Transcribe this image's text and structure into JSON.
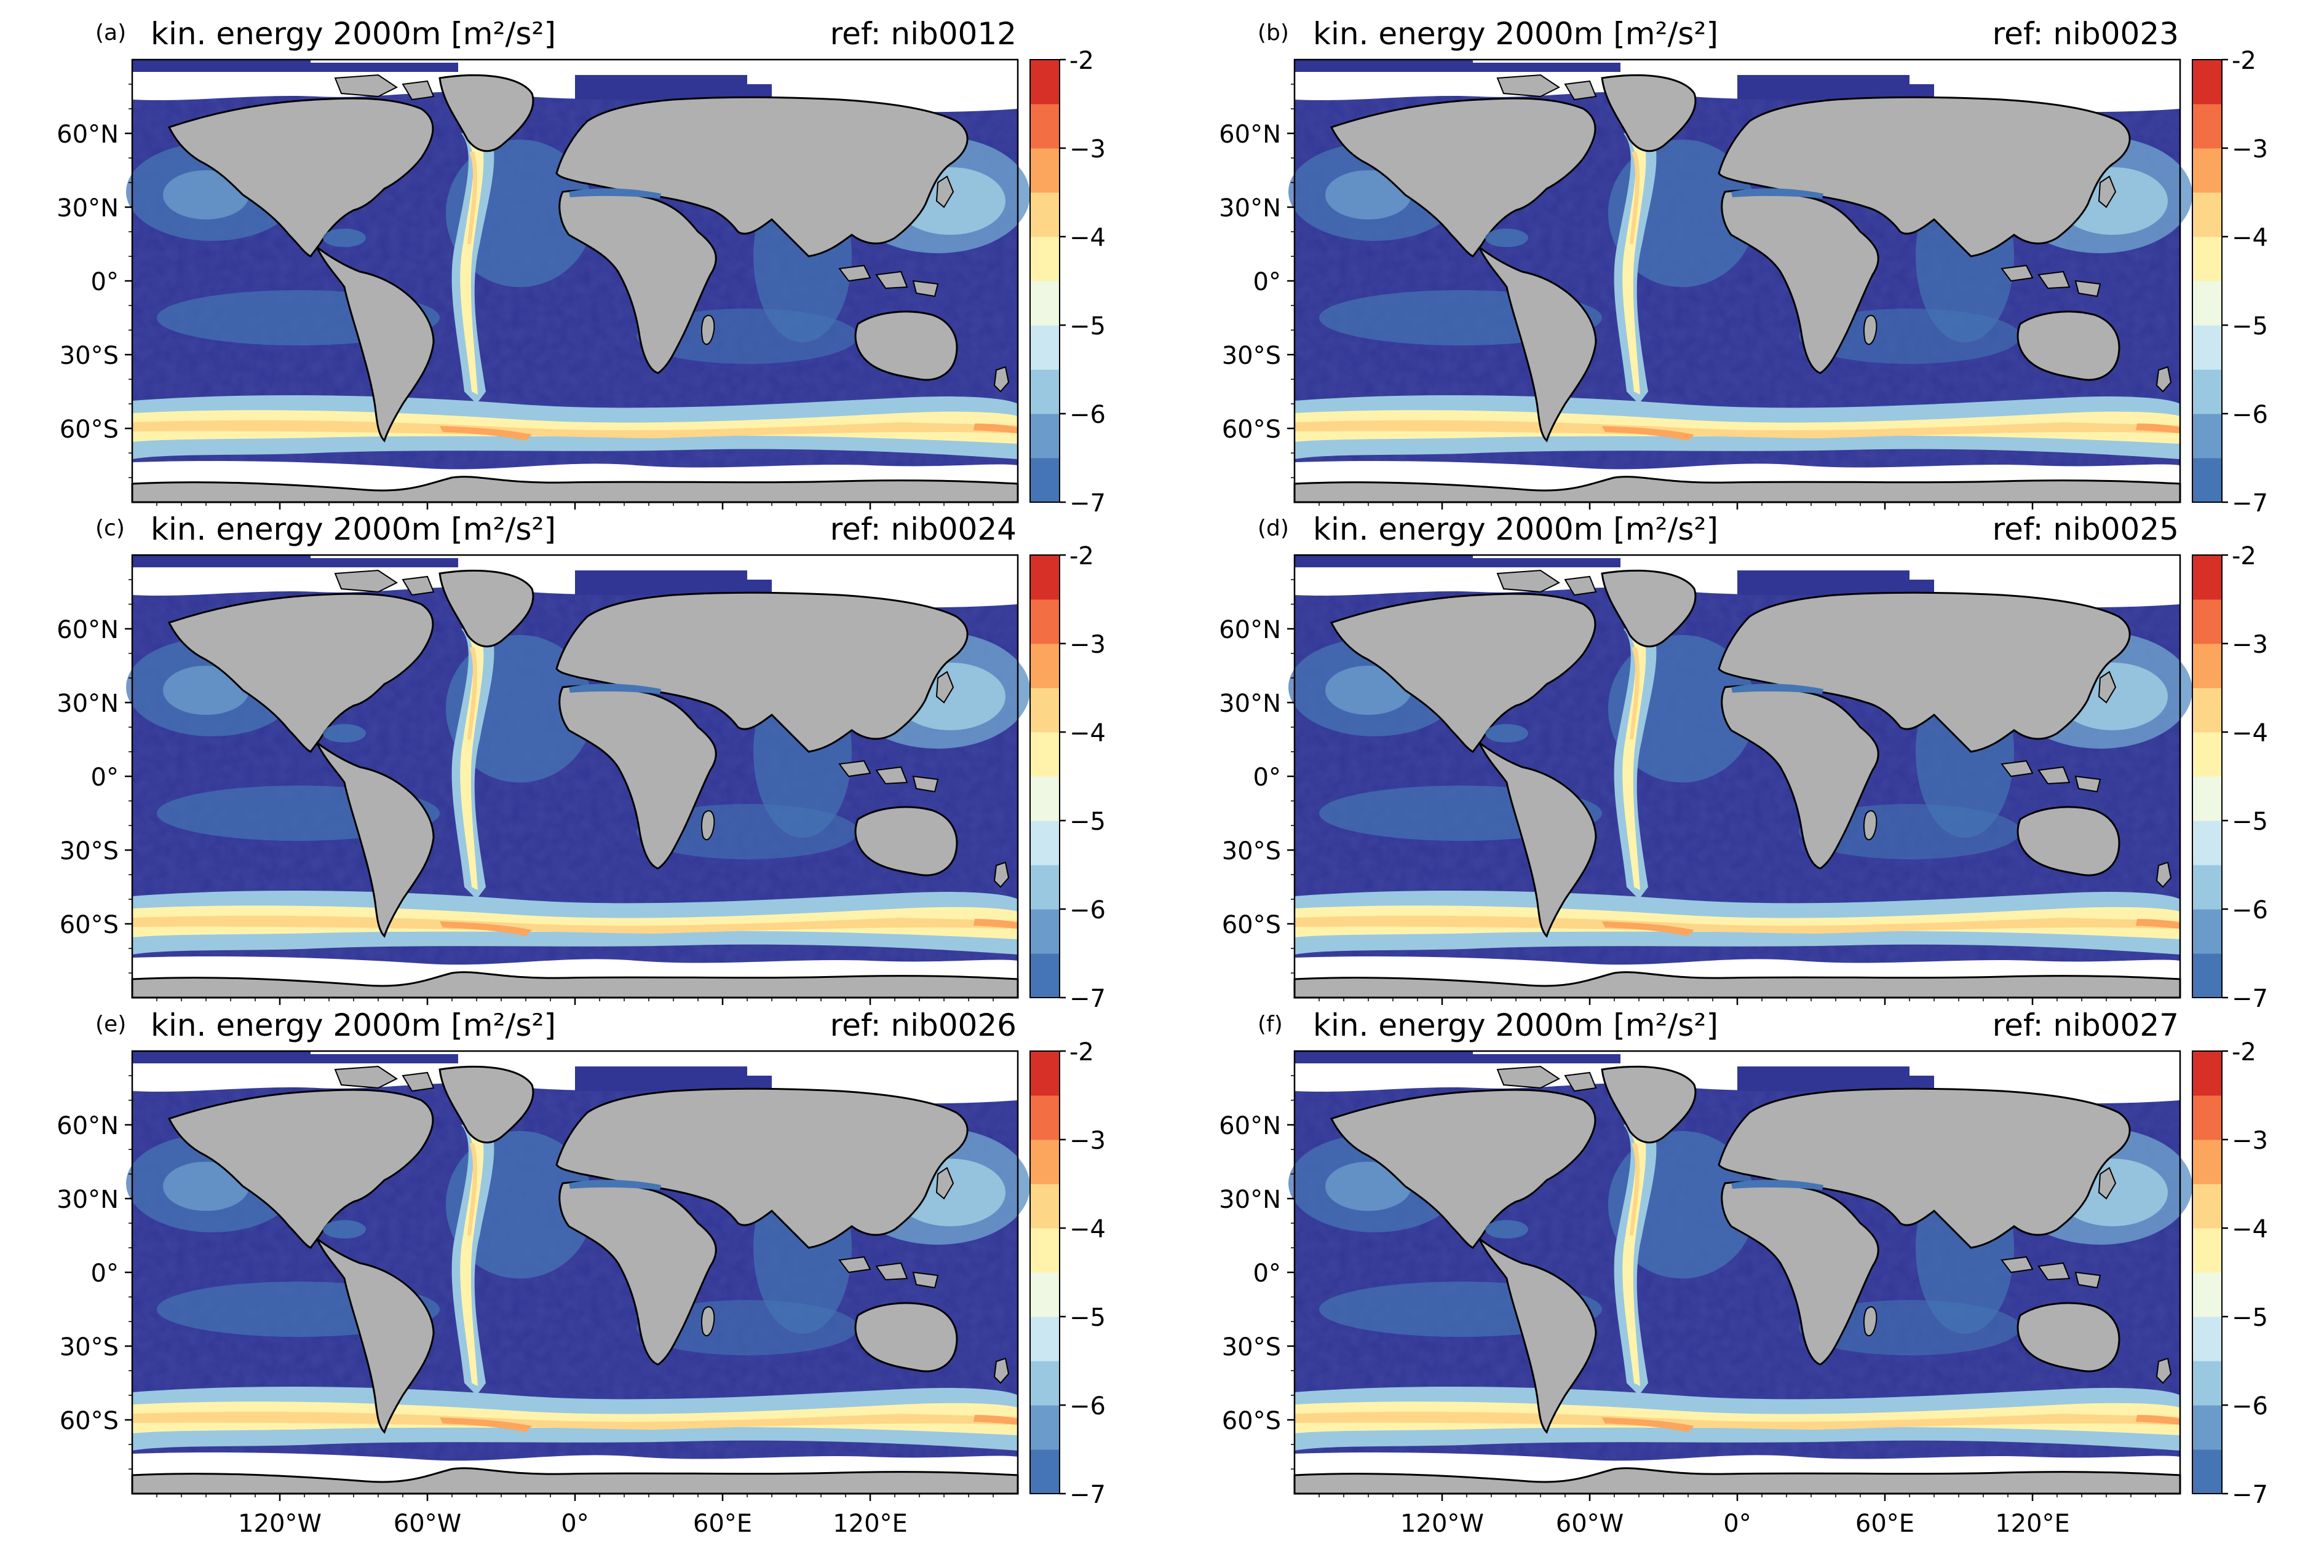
{
  "figure": {
    "panel_labels": [
      "(a)",
      "(b)",
      "(c)",
      "(d)",
      "(e)",
      "(f)"
    ]
  },
  "chart_data": [
    {
      "type": "heatmap",
      "label": "(a)",
      "title": "kin. energy 2000m [m²/s²]",
      "ref": "ref: nib0012",
      "x_ticks": [
        "120°W",
        "60°W",
        "0°",
        "60°E",
        "120°E"
      ],
      "y_ticks": [
        "60°N",
        "30°N",
        "0°",
        "30°S",
        "60°S"
      ],
      "x_tick_values": [
        -120,
        -60,
        0,
        60,
        120
      ],
      "y_tick_values": [
        60,
        30,
        0,
        -30,
        -60
      ],
      "xlim": [
        -180,
        180
      ],
      "ylim": [
        -90,
        90
      ],
      "show_xticklabels": false,
      "colorbar": {
        "ticks": [
          "-2",
          "−3",
          "−4",
          "−5",
          "−6",
          "−7"
        ],
        "tick_values": [
          -2,
          -3,
          -4,
          -5,
          -6,
          -7
        ],
        "range": [
          -7,
          -2
        ],
        "levels": 10
      }
    },
    {
      "type": "heatmap",
      "label": "(b)",
      "title": "kin. energy 2000m [m²/s²]",
      "ref": "ref: nib0023",
      "x_ticks": [
        "120°W",
        "60°W",
        "0°",
        "60°E",
        "120°E"
      ],
      "y_ticks": [
        "60°N",
        "30°N",
        "0°",
        "30°S",
        "60°S"
      ],
      "x_tick_values": [
        -120,
        -60,
        0,
        60,
        120
      ],
      "y_tick_values": [
        60,
        30,
        0,
        -30,
        -60
      ],
      "xlim": [
        -180,
        180
      ],
      "ylim": [
        -90,
        90
      ],
      "show_xticklabels": false,
      "colorbar": {
        "ticks": [
          "-2",
          "−3",
          "−4",
          "−5",
          "−6",
          "−7"
        ],
        "tick_values": [
          -2,
          -3,
          -4,
          -5,
          -6,
          -7
        ],
        "range": [
          -7,
          -2
        ],
        "levels": 10
      }
    },
    {
      "type": "heatmap",
      "label": "(c)",
      "title": "kin. energy 2000m [m²/s²]",
      "ref": "ref: nib0024",
      "x_ticks": [
        "120°W",
        "60°W",
        "0°",
        "60°E",
        "120°E"
      ],
      "y_ticks": [
        "60°N",
        "30°N",
        "0°",
        "30°S",
        "60°S"
      ],
      "x_tick_values": [
        -120,
        -60,
        0,
        60,
        120
      ],
      "y_tick_values": [
        60,
        30,
        0,
        -30,
        -60
      ],
      "xlim": [
        -180,
        180
      ],
      "ylim": [
        -90,
        90
      ],
      "show_xticklabels": false,
      "colorbar": {
        "ticks": [
          "-2",
          "−3",
          "−4",
          "−5",
          "−6",
          "−7"
        ],
        "tick_values": [
          -2,
          -3,
          -4,
          -5,
          -6,
          -7
        ],
        "range": [
          -7,
          -2
        ],
        "levels": 10
      }
    },
    {
      "type": "heatmap",
      "label": "(d)",
      "title": "kin. energy 2000m [m²/s²]",
      "ref": "ref: nib0025",
      "x_ticks": [
        "120°W",
        "60°W",
        "0°",
        "60°E",
        "120°E"
      ],
      "y_ticks": [
        "60°N",
        "30°N",
        "0°",
        "30°S",
        "60°S"
      ],
      "x_tick_values": [
        -120,
        -60,
        0,
        60,
        120
      ],
      "y_tick_values": [
        60,
        30,
        0,
        -30,
        -60
      ],
      "xlim": [
        -180,
        180
      ],
      "ylim": [
        -90,
        90
      ],
      "show_xticklabels": false,
      "colorbar": {
        "ticks": [
          "-2",
          "−3",
          "−4",
          "−5",
          "−6",
          "−7"
        ],
        "tick_values": [
          -2,
          -3,
          -4,
          -5,
          -6,
          -7
        ],
        "range": [
          -7,
          -2
        ],
        "levels": 10
      }
    },
    {
      "type": "heatmap",
      "label": "(e)",
      "title": "kin. energy 2000m [m²/s²]",
      "ref": "ref: nib0026",
      "x_ticks": [
        "120°W",
        "60°W",
        "0°",
        "60°E",
        "120°E"
      ],
      "y_ticks": [
        "60°N",
        "30°N",
        "0°",
        "30°S",
        "60°S"
      ],
      "x_tick_values": [
        -120,
        -60,
        0,
        60,
        120
      ],
      "y_tick_values": [
        60,
        30,
        0,
        -30,
        -60
      ],
      "xlim": [
        -180,
        180
      ],
      "ylim": [
        -90,
        90
      ],
      "show_xticklabels": true,
      "colorbar": {
        "ticks": [
          "-2",
          "−3",
          "−4",
          "−5",
          "−6",
          "−7"
        ],
        "tick_values": [
          -2,
          -3,
          -4,
          -5,
          -6,
          -7
        ],
        "range": [
          -7,
          -2
        ],
        "levels": 10
      }
    },
    {
      "type": "heatmap",
      "label": "(f)",
      "title": "kin. energy 2000m [m²/s²]",
      "ref": "ref: nib0027",
      "x_ticks": [
        "120°W",
        "60°W",
        "0°",
        "60°E",
        "120°E"
      ],
      "y_ticks": [
        "60°N",
        "30°N",
        "0°",
        "30°S",
        "60°S"
      ],
      "x_tick_values": [
        -120,
        -60,
        0,
        60,
        120
      ],
      "y_tick_values": [
        60,
        30,
        0,
        -30,
        -60
      ],
      "xlim": [
        -180,
        180
      ],
      "ylim": [
        -90,
        90
      ],
      "show_xticklabels": true,
      "colorbar": {
        "ticks": [
          "-2",
          "−3",
          "−4",
          "−5",
          "−6",
          "−7"
        ],
        "tick_values": [
          -2,
          -3,
          -4,
          -5,
          -6,
          -7
        ],
        "range": [
          -7,
          -2
        ],
        "levels": 10
      }
    }
  ],
  "colors": {
    "land": "#b0b0b0",
    "ice": "#ffffff",
    "deep_ocean": "#313695",
    "colormap": [
      "#4575b4",
      "#6b9bca",
      "#9ac8e0",
      "#cbe8f2",
      "#eef8e3",
      "#fff3ac",
      "#fed687",
      "#fca55d",
      "#f36e43",
      "#d73027"
    ]
  }
}
